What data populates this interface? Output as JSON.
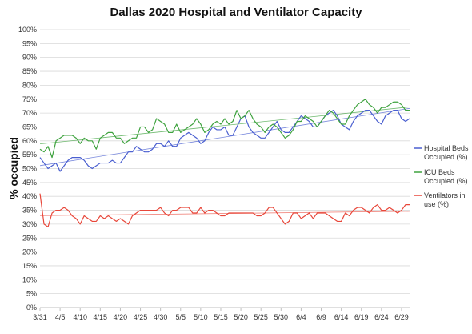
{
  "chart_data": {
    "type": "line",
    "title": "Dallas 2020 Hospital and Ventilator Capacity",
    "xlabel": "",
    "ylabel": "% occupied",
    "ylim": [
      0,
      100
    ],
    "yticks": [
      "0%",
      "5%",
      "10%",
      "15%",
      "20%",
      "25%",
      "30%",
      "35%",
      "40%",
      "45%",
      "50%",
      "55%",
      "60%",
      "65%",
      "70%",
      "75%",
      "80%",
      "85%",
      "90%",
      "95%",
      "100%"
    ],
    "xtick_labels": [
      "3/31",
      "4/5",
      "4/10",
      "4/15",
      "4/20",
      "4/25",
      "4/30",
      "5/5",
      "5/10",
      "5/15",
      "5/20",
      "5/25",
      "5/30",
      "6/4",
      "6/9",
      "6/14",
      "6/19",
      "6/24",
      "6/29"
    ],
    "grid": true,
    "legend_position": "right",
    "trendlines": true,
    "series": [
      {
        "name": "Hospital Beds Occupied (%)",
        "color": "#4a5fd0",
        "values": [
          54,
          52,
          50,
          51,
          52,
          49,
          51,
          53,
          54,
          54,
          54,
          53,
          51,
          50,
          51,
          52,
          52,
          52,
          53,
          52,
          52,
          54,
          56,
          56,
          58,
          57,
          56,
          56,
          57,
          59,
          59,
          58,
          60,
          58,
          58,
          61,
          62,
          63,
          62,
          61,
          59,
          60,
          63,
          65,
          64,
          64,
          65,
          62,
          62,
          65,
          68,
          69,
          65,
          63,
          62,
          61,
          61,
          63,
          65,
          67,
          64,
          63,
          63,
          65,
          67,
          69,
          68,
          67,
          65,
          65,
          67,
          69,
          70,
          71,
          69,
          66,
          65,
          64,
          67,
          69,
          70,
          71,
          71,
          69,
          67,
          66,
          69,
          70,
          71,
          71,
          68,
          67,
          68
        ]
      },
      {
        "name": "ICU Beds Occupied (%)",
        "color": "#3fa33f",
        "values": [
          57,
          56,
          58,
          54,
          60,
          61,
          62,
          62,
          62,
          61,
          59,
          61,
          60,
          60,
          57,
          61,
          62,
          63,
          63,
          61,
          61,
          59,
          60,
          61,
          61,
          65,
          65,
          63,
          64,
          68,
          67,
          66,
          63,
          63,
          66,
          63,
          64,
          65,
          66,
          68,
          66,
          63,
          64,
          66,
          67,
          66,
          68,
          66,
          67,
          71,
          68,
          69,
          71,
          68,
          66,
          65,
          63,
          65,
          66,
          65,
          63,
          61,
          62,
          64,
          67,
          67,
          69,
          68,
          67,
          65,
          67,
          69,
          71,
          70,
          68,
          66,
          66,
          69,
          71,
          73,
          74,
          75,
          73,
          72,
          70,
          72,
          72,
          73,
          74,
          74,
          73,
          71,
          71
        ]
      },
      {
        "name": "Ventilators in use (%)",
        "color": "#e8473a",
        "values": [
          41,
          30,
          29,
          34,
          35,
          35,
          36,
          35,
          33,
          32,
          30,
          33,
          32,
          31,
          31,
          33,
          32,
          33,
          32,
          31,
          32,
          31,
          30,
          33,
          34,
          35,
          35,
          35,
          35,
          35,
          36,
          34,
          33,
          35,
          35,
          36,
          36,
          36,
          34,
          34,
          36,
          34,
          35,
          35,
          34,
          33,
          33,
          34,
          34,
          34,
          34,
          34,
          34,
          34,
          33,
          33,
          34,
          36,
          36,
          34,
          32,
          30,
          31,
          34,
          34,
          32,
          33,
          34,
          32,
          34,
          34,
          34,
          33,
          32,
          31,
          31,
          34,
          33,
          35,
          36,
          36,
          35,
          34,
          36,
          37,
          35,
          35,
          36,
          35,
          34,
          35,
          37,
          37
        ]
      }
    ]
  }
}
